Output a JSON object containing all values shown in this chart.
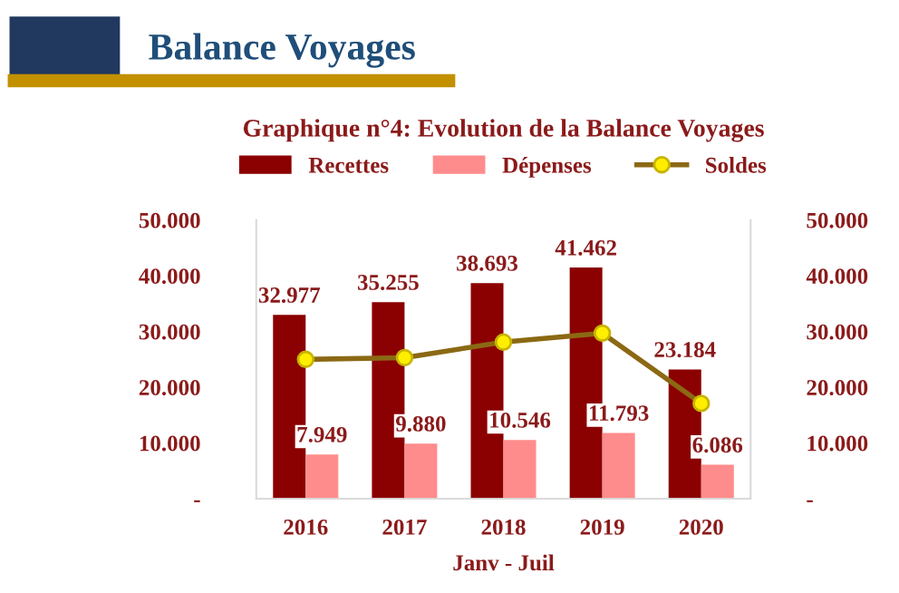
{
  "chart_data": {
    "type": "bar",
    "title": "Balance Voyages",
    "subtitle": "Graphique n°4: Evolution de la Balance Voyages",
    "xlabel": "Janv - Juil",
    "categories": [
      "2016",
      "2017",
      "2018",
      "2019",
      "2020"
    ],
    "series": [
      {
        "name": "Recettes",
        "color": "#8b0000",
        "values": [
          32977,
          35255,
          38693,
          41462,
          23184
        ],
        "value_labels": [
          "32.977",
          "35.255",
          "38.693",
          "41.462",
          "23.184"
        ]
      },
      {
        "name": "Dépenses",
        "color": "#ff8c8c",
        "values": [
          7949,
          9880,
          10546,
          11793,
          6086
        ],
        "value_labels": [
          "7.949",
          "9.880",
          "10.546",
          "11.793",
          "6.086"
        ]
      },
      {
        "name": "Soldes",
        "type": "line",
        "axis": "y2",
        "color": "#8b6914",
        "marker": "circle",
        "values": [
          25000,
          25300,
          28100,
          29700,
          17100
        ]
      }
    ],
    "ylim": [
      0,
      50000
    ],
    "yticks": [
      {
        "value": 0,
        "label": "-"
      },
      {
        "value": 10000,
        "label": "10.000"
      },
      {
        "value": 20000,
        "label": "20.000"
      },
      {
        "value": 30000,
        "label": "30.000"
      },
      {
        "value": 40000,
        "label": "40.000"
      },
      {
        "value": 50000,
        "label": "50.000"
      }
    ],
    "y2lim": [
      0,
      50000
    ],
    "y2ticks": [
      {
        "value": 0,
        "label": "-"
      },
      {
        "value": 10000,
        "label": "10.000"
      },
      {
        "value": 20000,
        "label": "20.000"
      },
      {
        "value": 30000,
        "label": "30.000"
      },
      {
        "value": 40000,
        "label": "40.000"
      },
      {
        "value": 50000,
        "label": "50.000"
      }
    ],
    "grid": false,
    "legend": "top"
  }
}
